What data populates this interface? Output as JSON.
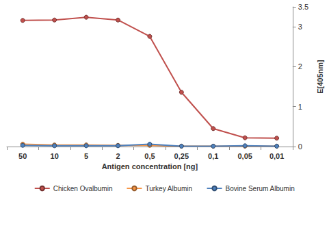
{
  "chart_data": {
    "type": "line",
    "x_label": "Antigen concentration [ng]",
    "y_label": "E[405nm]",
    "categories": [
      "50",
      "10",
      "5",
      "2",
      "0,5",
      "0,25",
      "0,1",
      "0,05",
      "0,01"
    ],
    "series": [
      {
        "name": "Chicken Ovalbumin",
        "color": "#c0504d",
        "marker": "circle",
        "values": [
          3.16,
          3.17,
          3.24,
          3.17,
          2.76,
          1.36,
          0.45,
          0.22,
          0.21
        ]
      },
      {
        "name": "Turkey Albumin",
        "color": "#f79646",
        "marker": "circle",
        "values": [
          0.06,
          0.04,
          0.04,
          0.03,
          0.03,
          0.01,
          0.01,
          0.01,
          0.01
        ]
      },
      {
        "name": "Bovine Serum Albumin",
        "color": "#4f81bd",
        "marker": "circle",
        "values": [
          0.03,
          0.02,
          0.02,
          0.02,
          0.06,
          0.01,
          0.01,
          0.02,
          0.01
        ]
      }
    ],
    "ylim": [
      0,
      3.5
    ],
    "yticks": [
      0,
      1,
      2,
      3
    ],
    "grid": false,
    "legend": "bottom"
  }
}
